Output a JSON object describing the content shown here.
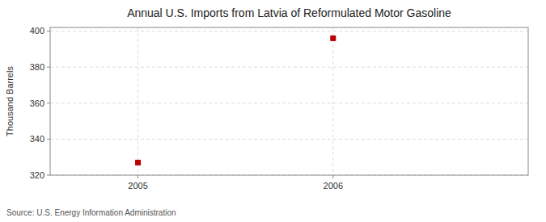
{
  "chart_data": {
    "type": "scatter",
    "title": "Annual U.S. Imports from Latvia of Reformulated Motor Gasoline",
    "ylabel": "Thousand Barrels",
    "source": "Source: U.S. Energy Information Administration",
    "x": [
      2005,
      2006
    ],
    "values": [
      327,
      396
    ],
    "color": "#bb0000",
    "marker": "square",
    "xlim": [
      2004.55,
      2007.0
    ],
    "ylim": [
      320,
      402
    ],
    "xticks": [
      2005,
      2006
    ],
    "yticks": [
      320,
      340,
      360,
      380,
      400
    ],
    "grid": true
  }
}
